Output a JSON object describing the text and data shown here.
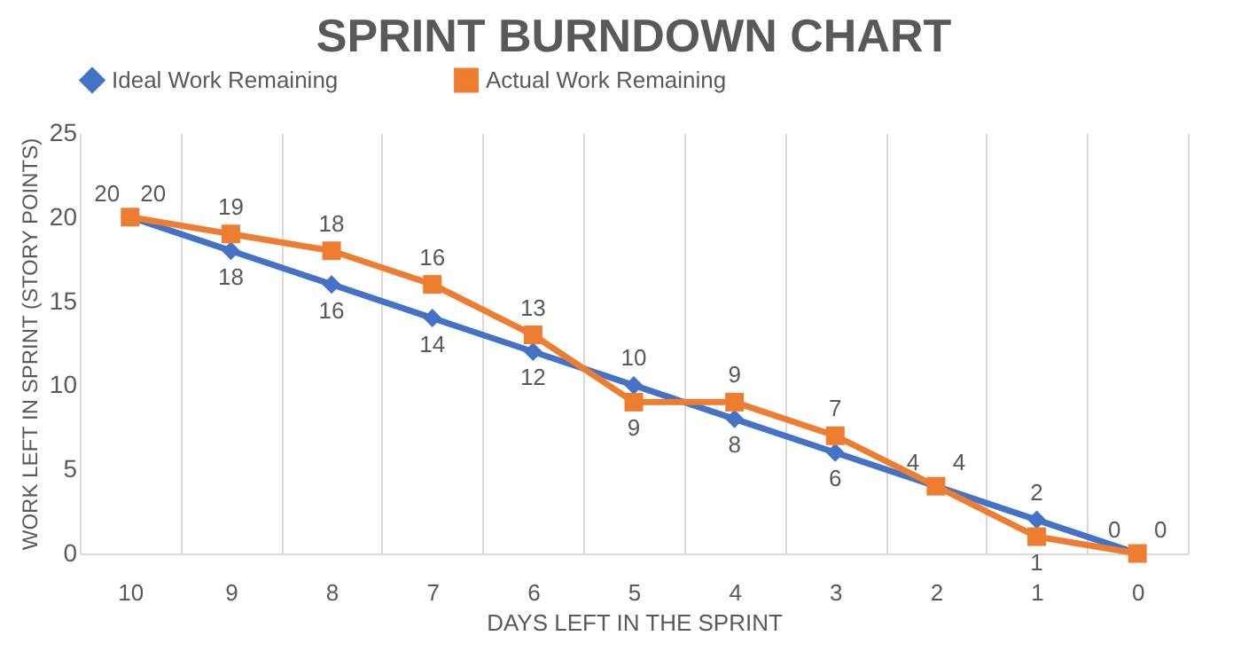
{
  "chart_data": {
    "type": "line",
    "title": "SPRINT BURNDOWN CHART",
    "xlabel": "DAYS LEFT IN THE SPRINT",
    "ylabel": "WORK LEFT IN SPRINT (STORY POINTS)",
    "categories": [
      "10",
      "9",
      "8",
      "7",
      "6",
      "5",
      "4",
      "3",
      "2",
      "1",
      "0"
    ],
    "series": [
      {
        "name": "Ideal Work Remaining",
        "color": "#4472c4",
        "marker": "diamond",
        "values": [
          20,
          18,
          16,
          14,
          12,
          10,
          8,
          6,
          4,
          2,
          0
        ]
      },
      {
        "name": "Actual Work Remaining",
        "color": "#ed7d31",
        "marker": "square",
        "values": [
          20,
          19,
          18,
          16,
          13,
          9,
          9,
          7,
          4,
          1,
          0
        ]
      }
    ],
    "ylim": [
      0,
      25
    ],
    "yticks": [
      0,
      5,
      10,
      15,
      20,
      25
    ],
    "grid": "x",
    "legend": "top",
    "data_labels": true
  }
}
